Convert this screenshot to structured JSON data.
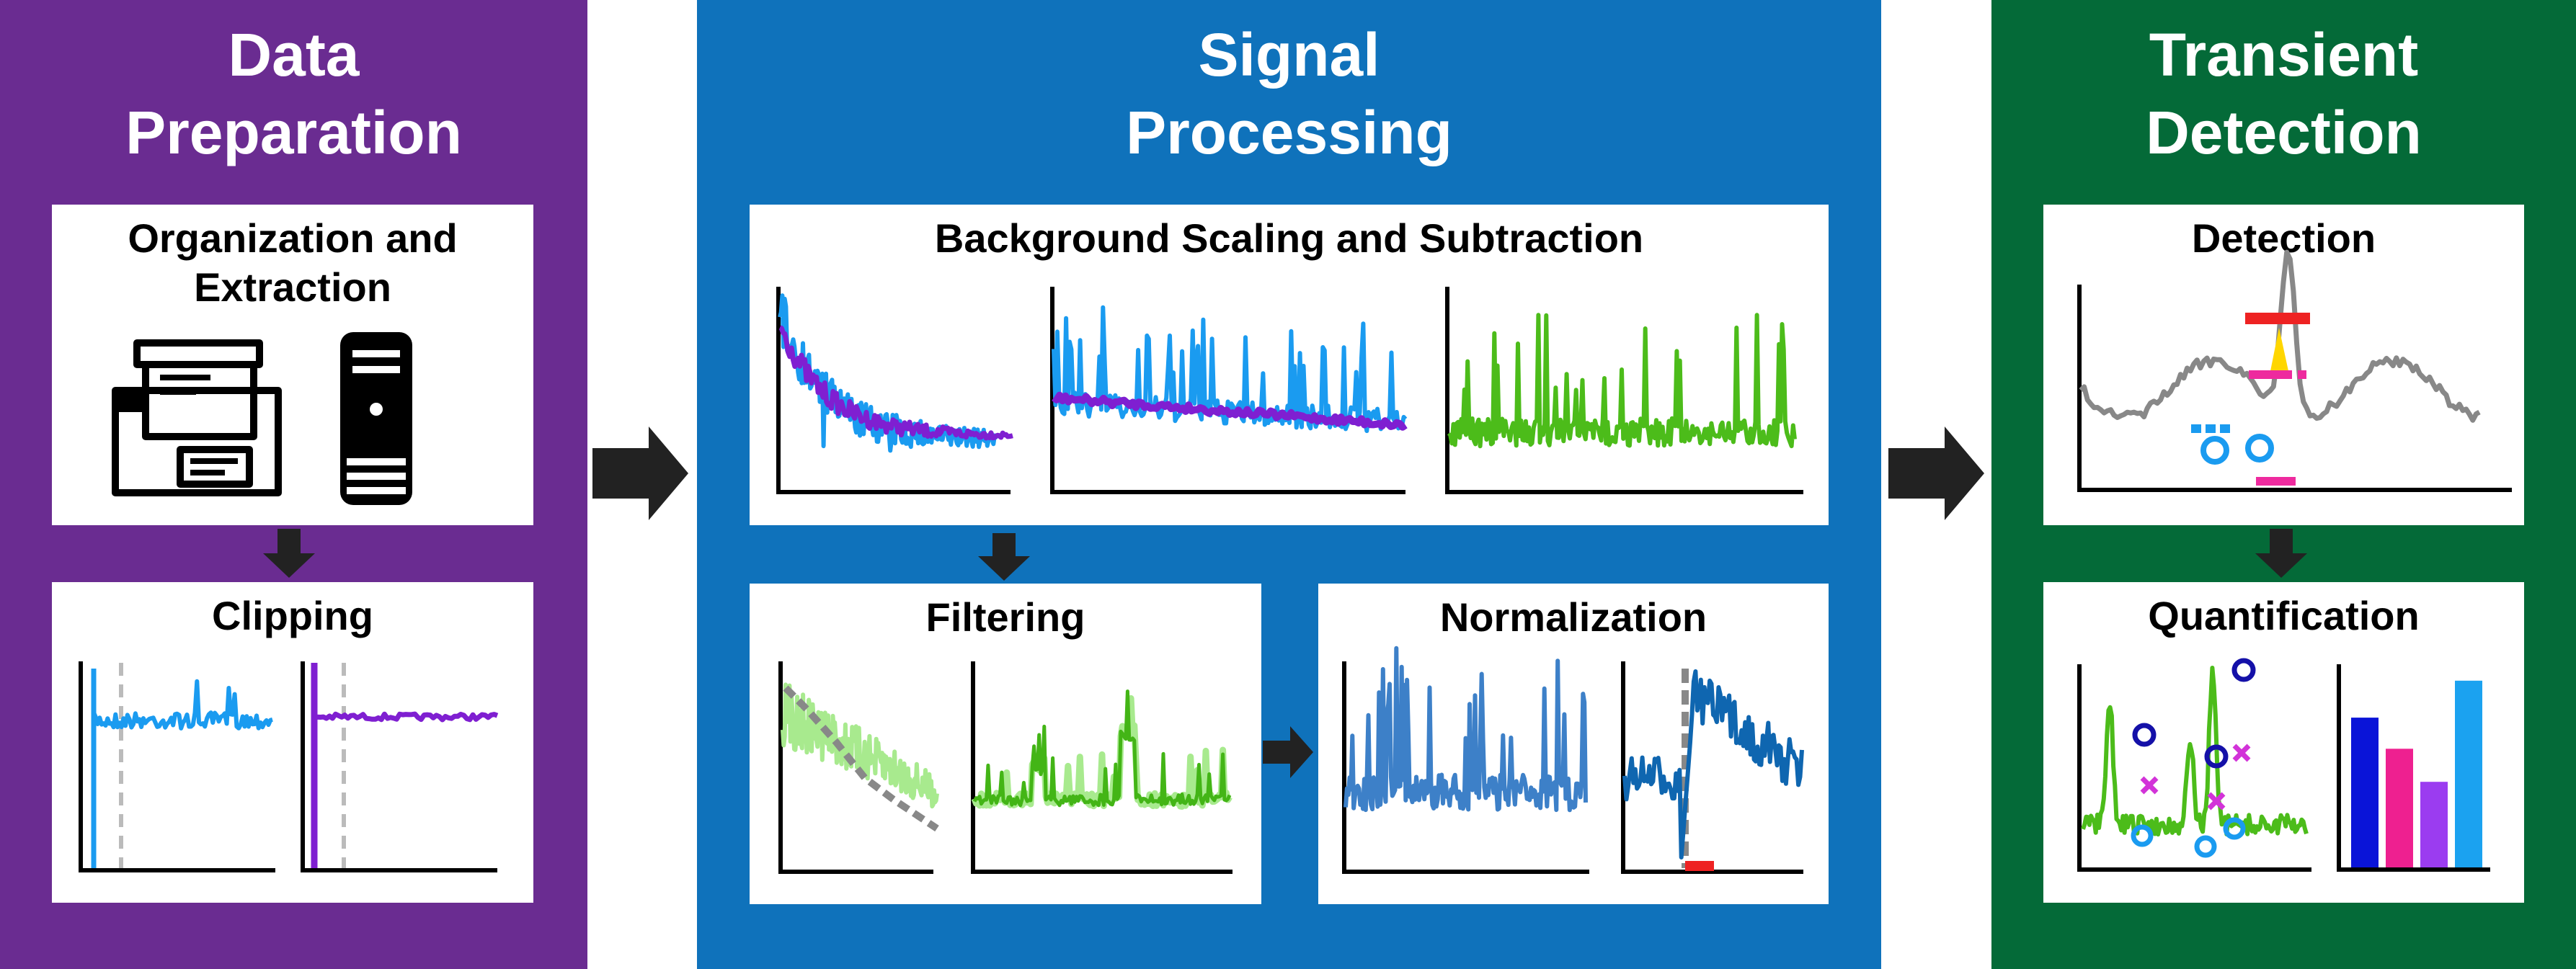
{
  "panels": [
    {
      "key": "prep",
      "title_lines": [
        "Data",
        "Preparation"
      ],
      "color": "#6a2c91"
    },
    {
      "key": "signal",
      "title_lines": [
        "Signal",
        "Processing"
      ],
      "color": "#0f72bb"
    },
    {
      "key": "transient",
      "title_lines": [
        "Transient",
        "Detection"
      ],
      "color": "#046a38"
    }
  ],
  "steps": {
    "organization": {
      "title_lines": [
        "Organization and",
        "Extraction"
      ]
    },
    "clipping": {
      "title": "Clipping"
    },
    "background": {
      "title": "Background Scaling and Subtraction"
    },
    "filtering": {
      "title": "Filtering"
    },
    "normalization": {
      "title": "Normalization"
    },
    "detection": {
      "title": "Detection"
    },
    "quantification": {
      "title": "Quantification"
    }
  },
  "colors": {
    "raw_signal": "#1a9bf0",
    "background": "#7f1fd1",
    "subtracted": "#4cbc1a",
    "filter_raw": "#a8ea8e",
    "filter_green": "#43b516",
    "filter_trend": "#888888",
    "normalized": "#3d80c8",
    "normalized_dark": "#0f66b0",
    "detect_trace": "#888888",
    "peak_threshold": "#ee2222",
    "peak_highlight": "#ffd600",
    "magenta": "#ee2a9e",
    "baseline_marker": "#1a9bf0",
    "quant_trace": "#4cbc1a",
    "quant_peak_ring": "#1410a8",
    "quant_half": "#d233d8",
    "arrow": "#222222"
  },
  "icons": [
    "file-cabinet-icon",
    "computer-tower-icon"
  ],
  "quantification_bars": [
    {
      "value": 0.77,
      "color": "#0a14d8"
    },
    {
      "value": 0.61,
      "color": "#ee2090"
    },
    {
      "value": 0.44,
      "color": "#9b3cf0"
    },
    {
      "value": 0.96,
      "color": "#1ba2f0"
    }
  ]
}
